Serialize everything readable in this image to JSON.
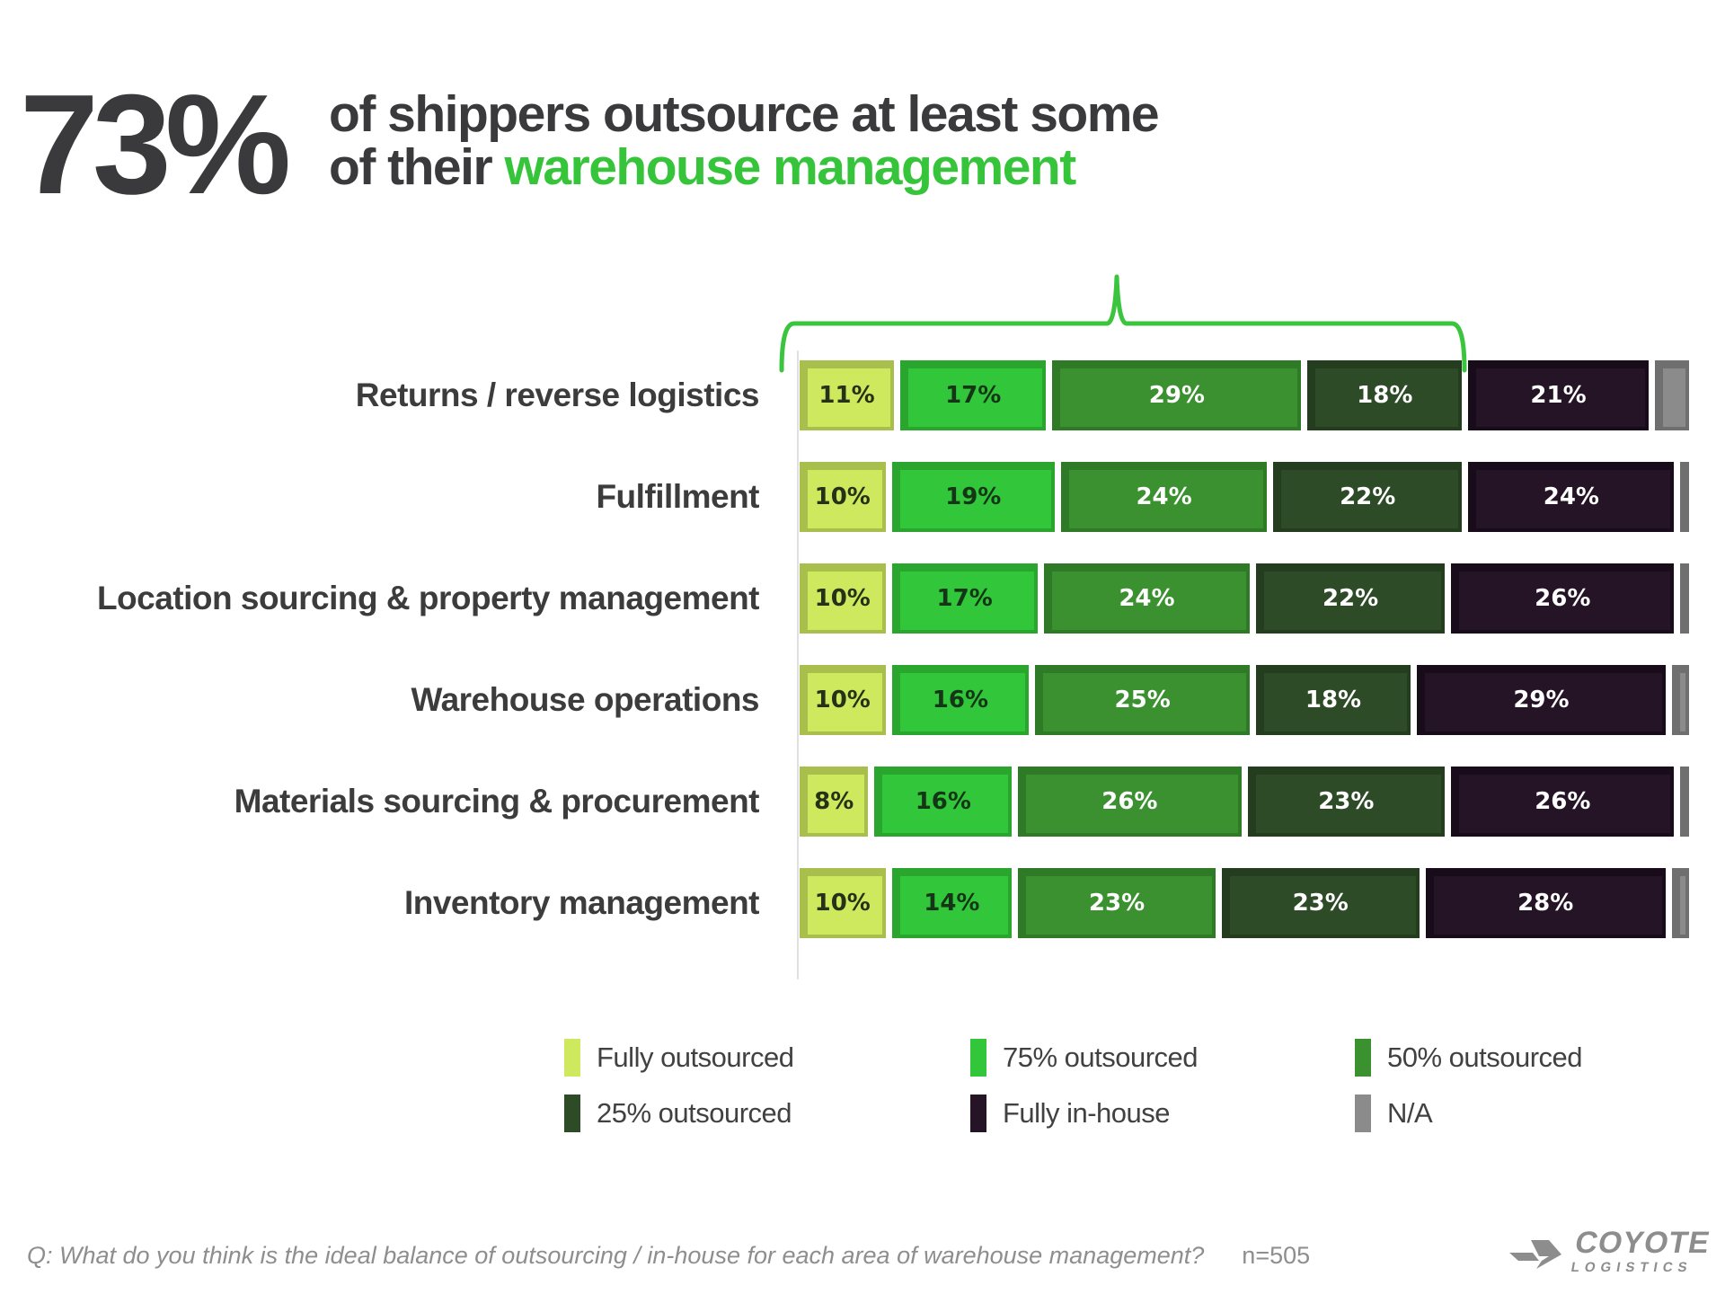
{
  "title": {
    "stat": "73%",
    "line1": "of shippers outsource at least some",
    "line2_prefix": "of their ",
    "line2_highlight": "warehouse management",
    "highlight_color": "#35c43a"
  },
  "chart_data": {
    "type": "bar",
    "orientation": "horizontal",
    "stacked": true,
    "unit": "%",
    "value_labels": "inside",
    "legend_position": "bottom",
    "categories": [
      "Returns / reverse logistics",
      "Fulfillment",
      "Location sourcing & property management",
      "Warehouse operations",
      "Materials sourcing & procurement",
      "Inventory management"
    ],
    "series": [
      {
        "name": "Fully outsourced",
        "color": "#cee95e",
        "shade": "#a8bf4d",
        "text_color": "#253218",
        "values": [
          11,
          10,
          10,
          10,
          8,
          10
        ]
      },
      {
        "name": "75% outsourced",
        "color": "#32c63b",
        "shade": "#2aa62f",
        "text_color": "#143617",
        "values": [
          17,
          19,
          17,
          16,
          16,
          14
        ]
      },
      {
        "name": "50% outsourced",
        "color": "#3b9130",
        "shade": "#2f7a26",
        "text_color": "#ffffff",
        "values": [
          29,
          24,
          24,
          25,
          26,
          23
        ]
      },
      {
        "name": "25% outsourced",
        "color": "#2e4b27",
        "shade": "#243d1e",
        "text_color": "#ffffff",
        "values": [
          18,
          22,
          22,
          18,
          23,
          23
        ]
      },
      {
        "name": "Fully in-house",
        "color": "#251326",
        "shade": "#180b1a",
        "text_color": "#ffffff",
        "values": [
          21,
          24,
          26,
          29,
          26,
          28
        ]
      },
      {
        "name": "N/A",
        "color": "#8b8b8b",
        "shade": "#6f6f6f",
        "text_color": "#ffffff",
        "values": [
          4,
          1,
          1,
          2,
          1,
          2
        ],
        "labels_hidden": true
      }
    ]
  },
  "legend": {
    "items": [
      {
        "label": "Fully outsourced",
        "color": "#cee95e"
      },
      {
        "label": "75% outsourced",
        "color": "#32c63b"
      },
      {
        "label": "50% outsourced",
        "color": "#3b9130"
      },
      {
        "label": "25% outsourced",
        "color": "#2e4b27"
      },
      {
        "label": "Fully in-house",
        "color": "#251326"
      },
      {
        "label": "N/A",
        "color": "#8b8b8b"
      }
    ]
  },
  "footer": {
    "question": "Q: What do you think is the ideal balance of outsourcing / in-house for each area of warehouse management?",
    "sample": "n=505"
  },
  "logo": {
    "name": "COYOTE",
    "sub": "LOGISTICS"
  }
}
